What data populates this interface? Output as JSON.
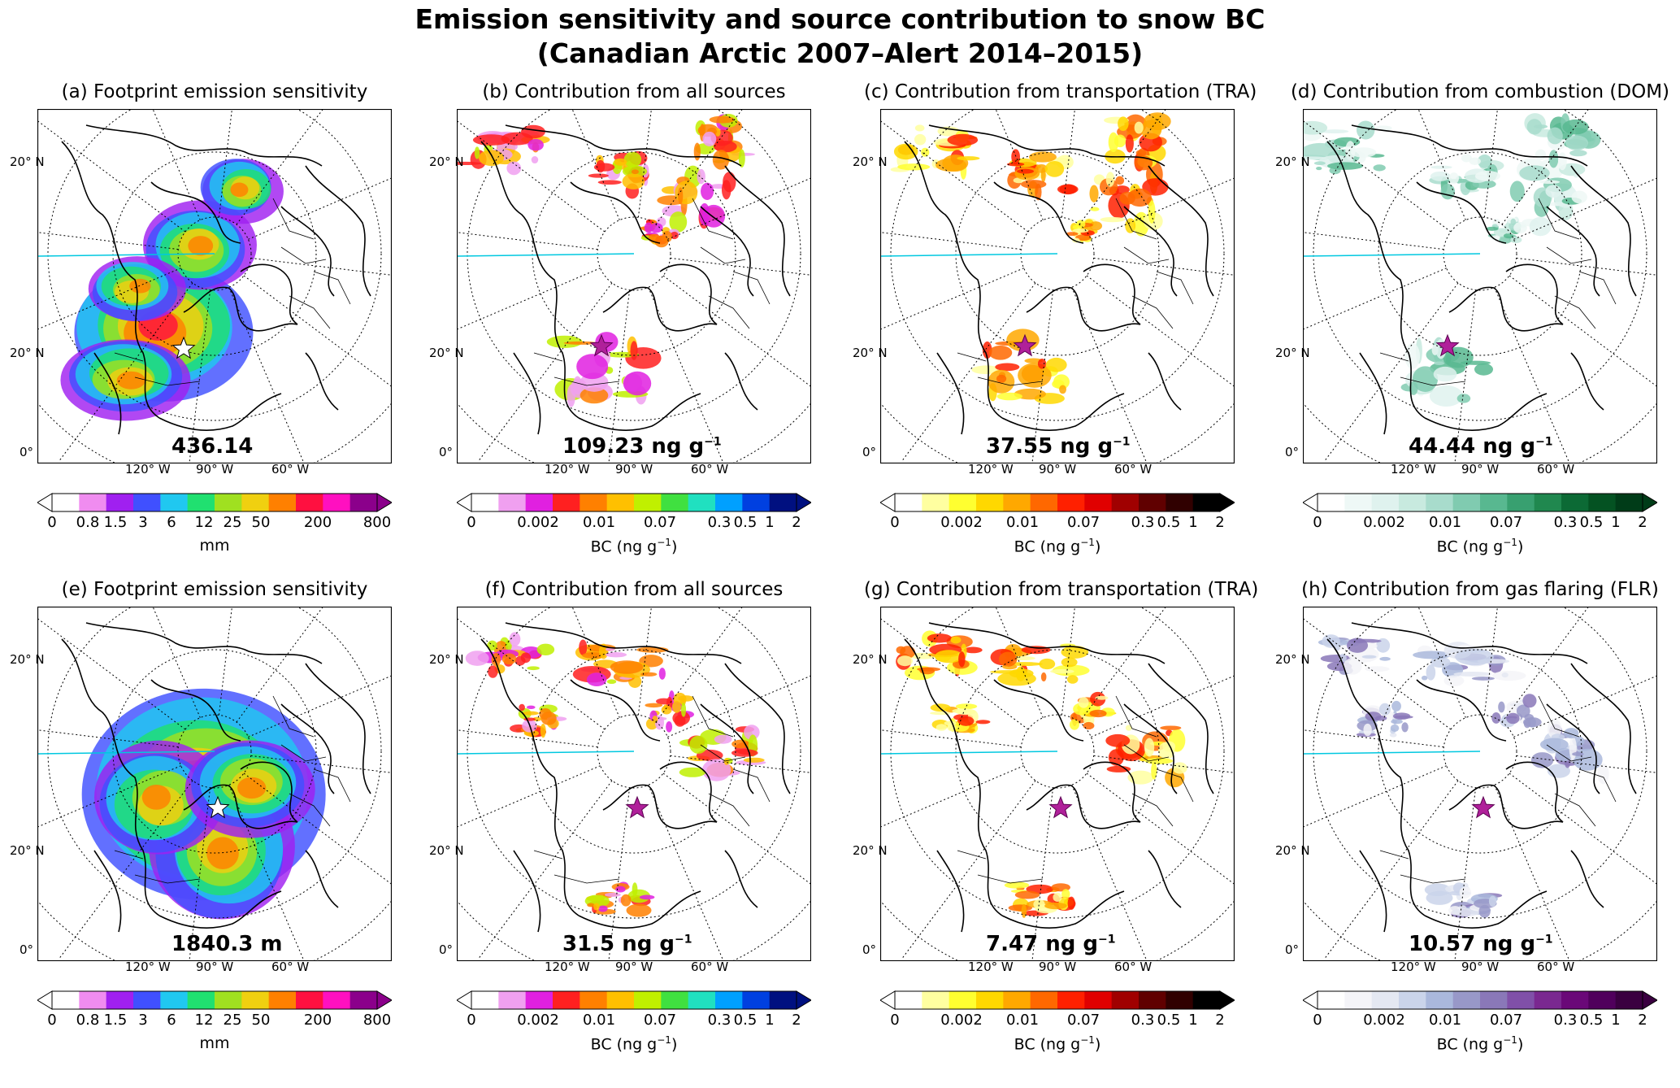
{
  "figure": {
    "title_line1": "Emission sensitivity and source contribution to snow BC",
    "title_line2": "(Canadian Arctic 2007–Alert 2014–2015)"
  },
  "panels": [
    {
      "title": "(a) Footprint emission sensitivity",
      "stamp": "436.14",
      "scale": "sens",
      "palette": "sens",
      "row": 0,
      "col": 0
    },
    {
      "title": "(b) Contribution from all sources",
      "stamp": "109.23 ng g",
      "scale": "bc",
      "palette": "all",
      "row": 0,
      "col": 1
    },
    {
      "title": "(c) Contribution from transportation (TRA)",
      "stamp": "37.55 ng g",
      "scale": "bc",
      "palette": "tra",
      "row": 0,
      "col": 2
    },
    {
      "title": "(d) Contribution from combustion (DOM)",
      "stamp": "44.44 ng g",
      "scale": "bc",
      "palette": "dom",
      "row": 0,
      "col": 3
    },
    {
      "title": "(e) Footprint emission sensitivity",
      "stamp": "1840.3 m",
      "scale": "sens",
      "palette": "sens",
      "row": 1,
      "col": 0
    },
    {
      "title": "(f) Contribution from all sources",
      "stamp": "31.5 ng g",
      "scale": "bc",
      "palette": "all",
      "row": 1,
      "col": 1
    },
    {
      "title": "(g) Contribution from transportation (TRA)",
      "stamp": "7.47 ng g",
      "scale": "bc",
      "palette": "tra",
      "row": 1,
      "col": 2
    },
    {
      "title": "(h) Contribution from gas flaring (FLR)",
      "stamp": "10.57 ng g",
      "scale": "bc",
      "palette": "flr",
      "row": 1,
      "col": 3
    }
  ],
  "stamp_exponent": "−1",
  "map_labels": {
    "lat": [
      "20° N",
      "20° N",
      "0°"
    ],
    "lon": [
      "120° W",
      "90° W",
      "60° W"
    ]
  },
  "colorbars": {
    "sens": {
      "ticks": [
        "0",
        "0.8",
        "1.5",
        "3",
        "6",
        "12",
        "25",
        "50",
        "200",
        "800"
      ],
      "unit": "mm"
    },
    "bc": {
      "ticks": [
        "0",
        "0.002",
        "0.01",
        "0.07",
        "0.3",
        "0.5",
        "1",
        "2"
      ],
      "unit": "BC (ng g",
      "unit_exp": "−1",
      "unit_close": ")"
    }
  },
  "palettes": {
    "sens": [
      "#ffffff",
      "#f08cf0",
      "#a020f0",
      "#4050ff",
      "#20c8f0",
      "#20e070",
      "#a0e020",
      "#f0d010",
      "#ff8000",
      "#ff1040",
      "#ff10c0",
      "#8b008b"
    ],
    "all": [
      "#ffffff",
      "#f0a0f0",
      "#e020e0",
      "#ff2020",
      "#ff8000",
      "#ffc000",
      "#c0f000",
      "#40e040",
      "#20e0c0",
      "#00a0ff",
      "#0040e0",
      "#001080"
    ],
    "tra": [
      "#ffffff",
      "#ffffa0",
      "#ffff30",
      "#ffd800",
      "#ffa800",
      "#ff6800",
      "#ff2000",
      "#e00000",
      "#a00000",
      "#600000",
      "#300000",
      "#000000"
    ],
    "dom": [
      "#ffffff",
      "#eef8f6",
      "#dff2ee",
      "#c8eadf",
      "#a8dccc",
      "#80cbb0",
      "#58b890",
      "#38a070",
      "#20884f",
      "#0c6a35",
      "#045222",
      "#003c18"
    ],
    "flr": [
      "#ffffff",
      "#f4f4f8",
      "#e4e8f2",
      "#cad4ea",
      "#aab8dc",
      "#9898c8",
      "#8a78b8",
      "#8050a8",
      "#7a2890",
      "#6a0878",
      "#50005c",
      "#3a0040"
    ]
  }
}
